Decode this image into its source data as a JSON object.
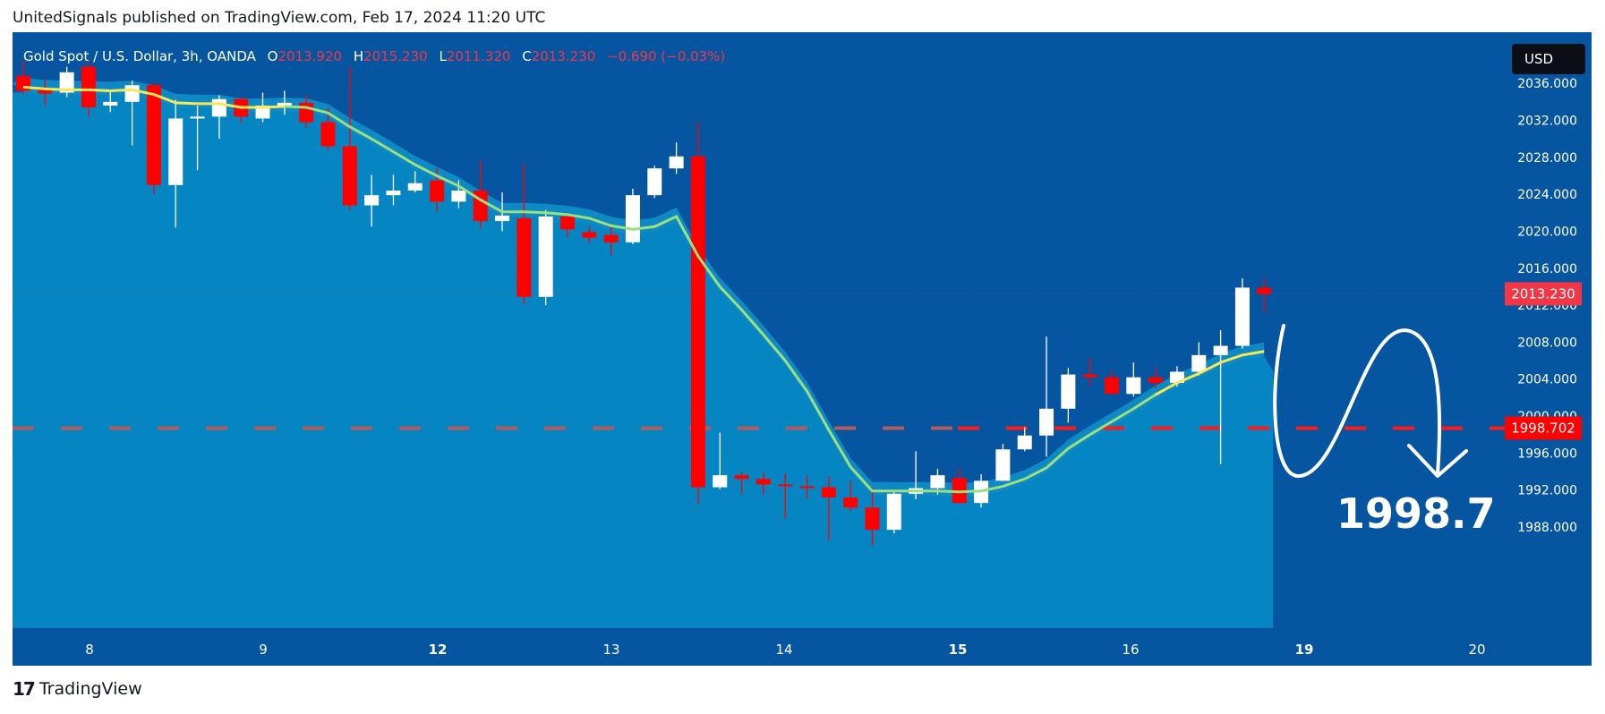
{
  "header": {
    "publisher_text": "UnitedSignals published on TradingView.com, Feb 17, 2024 11:20 UTC"
  },
  "footer": {
    "brand": "TradingView"
  },
  "legend": {
    "symbol": "Gold Spot / U.S. Dollar, 3h, OANDA",
    "open_label": "O",
    "open": "2013.920",
    "high_label": "H",
    "high": "2015.230",
    "low_label": "L",
    "low": "2011.320",
    "close_label": "C",
    "close": "2013.230",
    "change": "−0.690 (−0.03%)"
  },
  "currency_button": "USD",
  "price_labels": {
    "last": "2013.230",
    "level": "1998.702"
  },
  "annotation": {
    "text": "1998.7"
  },
  "colors": {
    "plot_bg": "#0555a0",
    "area": "#0585c1",
    "band": "#119bd0",
    "up": "#ffffff",
    "down": "#ff0000",
    "ma_fast": "#f5ea55",
    "ma_slow": "#9be07f",
    "level_line": "#ff1a1a",
    "last_price_label": "#f23645"
  },
  "chart_data": {
    "type": "candlestick",
    "timeframe": "3h",
    "x_tick_labels": [
      "8",
      "9",
      "12",
      "13",
      "14",
      "15",
      "16",
      "19",
      "20"
    ],
    "y_tick_labels": [
      "1988.000",
      "1992.000",
      "1996.000",
      "2000.000",
      "2004.000",
      "2008.000",
      "2012.000",
      "2016.000",
      "2020.000",
      "2024.000",
      "2028.000",
      "2032.000",
      "2036.000"
    ],
    "ylim": [
      1985.0,
      2038.0
    ],
    "horizontal_level": 1998.702,
    "last_price": 2013.23,
    "candles": [
      [
        2036.8,
        2038.5,
        2034.8,
        2035.2
      ],
      [
        2035.4,
        2036.4,
        2033.6,
        2034.9
      ],
      [
        2035.0,
        2037.8,
        2034.5,
        2037.2
      ],
      [
        2037.8,
        2038.3,
        2032.4,
        2033.4
      ],
      [
        2033.6,
        2035.2,
        2032.9,
        2034.0
      ],
      [
        2034.0,
        2036.3,
        2029.3,
        2035.8
      ],
      [
        2035.8,
        2036.1,
        2024.0,
        2025.0
      ],
      [
        2025.0,
        2034.2,
        2020.4,
        2032.2
      ],
      [
        2032.2,
        2033.6,
        2026.6,
        2032.4
      ],
      [
        2032.4,
        2034.7,
        2030.0,
        2034.3
      ],
      [
        2034.3,
        2034.5,
        2031.7,
        2032.4
      ],
      [
        2032.2,
        2035.0,
        2031.8,
        2033.6
      ],
      [
        2033.6,
        2035.2,
        2032.6,
        2033.9
      ],
      [
        2033.9,
        2034.7,
        2031.2,
        2031.8
      ],
      [
        2031.8,
        2033.4,
        2028.8,
        2029.2
      ],
      [
        2029.2,
        2037.8,
        2022.3,
        2022.8
      ],
      [
        2022.8,
        2026.1,
        2020.5,
        2023.9
      ],
      [
        2023.9,
        2026.1,
        2022.8,
        2024.4
      ],
      [
        2024.4,
        2026.5,
        2024.2,
        2025.2
      ],
      [
        2025.5,
        2026.8,
        2022.1,
        2023.2
      ],
      [
        2023.2,
        2025.5,
        2022.5,
        2024.4
      ],
      [
        2024.4,
        2027.6,
        2020.3,
        2021.1
      ],
      [
        2021.1,
        2024.2,
        2020.0,
        2021.7
      ],
      [
        2021.4,
        2027.2,
        2012.1,
        2012.9
      ],
      [
        2012.9,
        2022.3,
        2012.0,
        2021.6
      ],
      [
        2021.6,
        2021.9,
        2019.3,
        2020.2
      ],
      [
        2019.9,
        2020.5,
        2018.7,
        2019.3
      ],
      [
        2019.6,
        2020.5,
        2017.4,
        2018.8
      ],
      [
        2018.8,
        2024.6,
        2018.6,
        2023.9
      ],
      [
        2023.9,
        2027.1,
        2023.6,
        2026.8
      ],
      [
        2026.8,
        2029.6,
        2026.2,
        2028.1
      ],
      [
        2028.1,
        2031.8,
        1990.5,
        1992.3
      ],
      [
        1992.3,
        1998.2,
        1992.1,
        1993.6
      ],
      [
        1993.6,
        1994.0,
        1991.5,
        1993.2
      ],
      [
        1993.2,
        1993.9,
        1991.5,
        1992.6
      ],
      [
        1992.6,
        1993.8,
        1988.9,
        1992.5
      ],
      [
        1992.4,
        1993.6,
        1991.0,
        1992.3
      ],
      [
        1992.3,
        1993.5,
        1986.5,
        1991.2
      ],
      [
        1991.2,
        1993.0,
        1989.7,
        1990.1
      ],
      [
        1990.1,
        1992.2,
        1986.0,
        1987.7
      ],
      [
        1987.7,
        1991.8,
        1987.3,
        1991.6
      ],
      [
        1991.6,
        1996.2,
        1991.0,
        1992.2
      ],
      [
        1992.2,
        1994.3,
        1991.5,
        1993.6
      ],
      [
        1993.3,
        1994.4,
        1990.5,
        1990.6
      ],
      [
        1990.6,
        1993.7,
        1990.1,
        1993.0
      ],
      [
        1993.0,
        1997.0,
        1993.0,
        1996.4
      ],
      [
        1996.4,
        1998.8,
        1996.2,
        1997.9
      ],
      [
        1997.9,
        2008.6,
        1995.6,
        2000.8
      ],
      [
        2000.8,
        2005.2,
        1999.3,
        2004.5
      ],
      [
        2004.5,
        2006.3,
        2003.3,
        2004.2
      ],
      [
        2004.2,
        2005.0,
        2002.4,
        2002.4
      ],
      [
        2002.4,
        2005.8,
        2002.1,
        2004.2
      ],
      [
        2004.2,
        2005.2,
        2003.0,
        2003.6
      ],
      [
        2003.6,
        2005.4,
        2003.2,
        2004.8
      ],
      [
        2004.8,
        2008.0,
        2004.4,
        2006.6
      ],
      [
        2006.6,
        2009.3,
        1994.8,
        2007.6
      ],
      [
        2007.6,
        2014.9,
        2007.3,
        2013.9
      ],
      [
        2013.9,
        2014.9,
        2011.3,
        2013.2
      ]
    ],
    "moving_average_fast": [
      2035.6,
      2035.4,
      2035.3,
      2035.3,
      2035.2,
      2035.3,
      2034.8,
      2033.9,
      2033.8,
      2033.8,
      2033.4,
      2033.4,
      2033.5,
      2033.4,
      2032.8,
      2031.3,
      2030.0,
      2028.6,
      2027.2,
      2026.0,
      2024.9,
      2023.4,
      2022.1,
      2022.1,
      2022.0,
      2021.8,
      2021.4,
      2020.6,
      2020.2,
      2020.5,
      2021.6,
      2017.3,
      2014.0,
      2011.5,
      2008.8,
      2006.0,
      2002.7,
      1998.5,
      1994.5,
      1991.9,
      1991.9,
      1991.9,
      1991.9,
      1991.8,
      1991.9,
      1992.4,
      1993.2,
      1994.4,
      1996.5,
      1998.0,
      1999.4,
      2000.8,
      2002.3,
      2003.6,
      2004.6,
      2005.8,
      2006.6,
      2007.0
    ]
  }
}
